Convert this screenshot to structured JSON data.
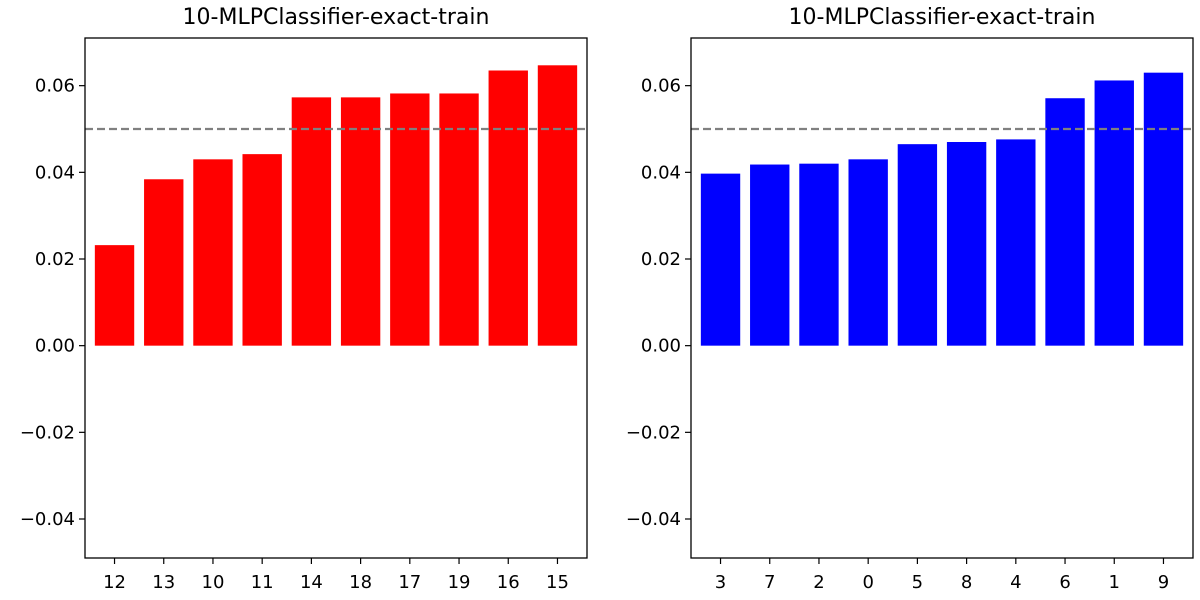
{
  "chart_data": [
    {
      "type": "bar",
      "title": "10-MLPClassifier-exact-train",
      "categories": [
        "12",
        "13",
        "10",
        "11",
        "14",
        "18",
        "17",
        "19",
        "16",
        "15"
      ],
      "values": [
        0.0232,
        0.0384,
        0.043,
        0.0442,
        0.0573,
        0.0573,
        0.0582,
        0.0582,
        0.0635,
        0.0647
      ],
      "color": "#ff0000",
      "ylim": [
        -0.049,
        0.071
      ],
      "yticks": [
        -0.04,
        -0.02,
        0.0,
        0.02,
        0.04,
        0.06
      ],
      "ytick_labels": [
        "−0.04",
        "−0.02",
        "0.00",
        "0.02",
        "0.04",
        "0.06"
      ],
      "reference_line": {
        "y": 0.05,
        "style": "dashed",
        "color": "#808080"
      },
      "xlabel": "",
      "ylabel": "",
      "grid": false
    },
    {
      "type": "bar",
      "title": "10-MLPClassifier-exact-train",
      "categories": [
        "3",
        "7",
        "2",
        "0",
        "5",
        "8",
        "4",
        "6",
        "1",
        "9"
      ],
      "values": [
        0.0397,
        0.0418,
        0.042,
        0.043,
        0.0465,
        0.047,
        0.0476,
        0.0571,
        0.0612,
        0.063
      ],
      "color": "#0000ff",
      "ylim": [
        -0.049,
        0.071
      ],
      "yticks": [
        -0.04,
        -0.02,
        0.0,
        0.02,
        0.04,
        0.06
      ],
      "ytick_labels": [
        "−0.04",
        "−0.02",
        "0.00",
        "0.02",
        "0.04",
        "0.06"
      ],
      "reference_line": {
        "y": 0.05,
        "style": "dashed",
        "color": "#808080"
      },
      "xlabel": "",
      "ylabel": "",
      "grid": false
    }
  ]
}
